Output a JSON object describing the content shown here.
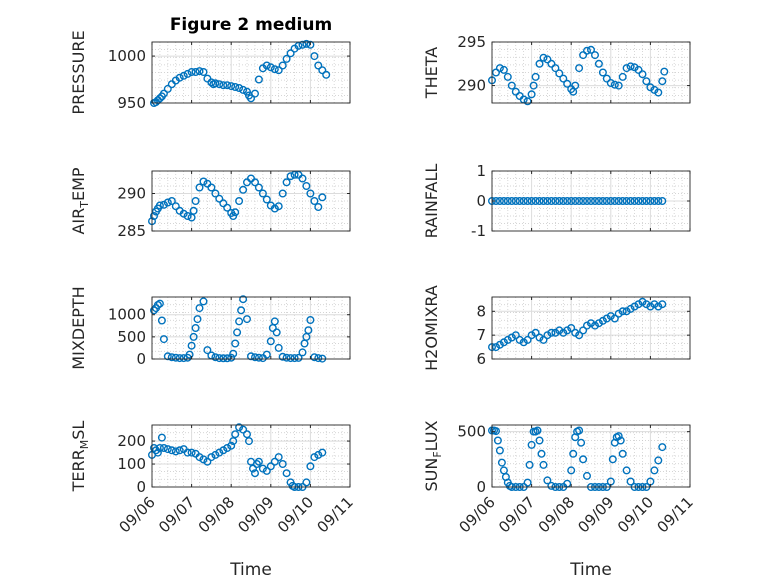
{
  "figure": {
    "title": "Figure 2 medium",
    "xlabel": "Time"
  },
  "colors": {
    "marker": "#0072BD",
    "axis": "#262626",
    "grid": "#c8c8c8"
  },
  "chart_data": [
    {
      "type": "scatter",
      "id": "pressure",
      "ylabel": {
        "main": "PRESSURE",
        "sub": "",
        "tail": ""
      },
      "ylim": [
        950,
        1015
      ],
      "yticks": [
        950,
        1000
      ],
      "xlim": [
        "09/06",
        "09/11"
      ],
      "grid": true,
      "series": [
        {
          "x": [
            0.05,
            0.1,
            0.15,
            0.2,
            0.25,
            0.3,
            0.4,
            0.5,
            0.6,
            0.7,
            0.8,
            0.9,
            1.0,
            1.1,
            1.2,
            1.3,
            1.4,
            1.5,
            1.55,
            1.6,
            1.7,
            1.8,
            1.9,
            2.0,
            2.1,
            2.2,
            2.3,
            2.4,
            2.45,
            2.5,
            2.6,
            2.7,
            2.8,
            2.9,
            3.0,
            3.1,
            3.2,
            3.3,
            3.4,
            3.5,
            3.6,
            3.7,
            3.8,
            3.9,
            4.0,
            4.1,
            4.2,
            4.3,
            4.4
          ],
          "y": [
            950,
            951,
            953,
            955,
            957,
            960,
            965,
            970,
            974,
            977,
            979,
            981,
            983,
            983,
            984,
            983,
            976,
            972,
            970,
            971,
            970,
            969,
            969,
            968,
            967,
            966,
            964,
            962,
            958,
            955,
            960,
            975,
            987,
            990,
            988,
            986,
            985,
            990,
            997,
            1003,
            1008,
            1011,
            1012,
            1013,
            1012,
            1000,
            990,
            985,
            980
          ]
        }
      ]
    },
    {
      "type": "scatter",
      "id": "theta",
      "ylabel": {
        "main": "THETA",
        "sub": "",
        "tail": ""
      },
      "ylim": [
        288,
        295
      ],
      "yticks": [
        290,
        295
      ],
      "xlim": [
        "09/06",
        "09/11"
      ],
      "grid": true,
      "series": [
        {
          "x": [
            0.0,
            0.1,
            0.2,
            0.3,
            0.4,
            0.5,
            0.6,
            0.7,
            0.8,
            0.9,
            1.0,
            1.05,
            1.1,
            1.2,
            1.3,
            1.4,
            1.5,
            1.6,
            1.7,
            1.8,
            1.9,
            2.0,
            2.05,
            2.1,
            2.2,
            2.3,
            2.4,
            2.5,
            2.6,
            2.7,
            2.8,
            2.9,
            3.0,
            3.1,
            3.2,
            3.3,
            3.4,
            3.5,
            3.6,
            3.7,
            3.8,
            3.9,
            4.0,
            4.1,
            4.2,
            4.3,
            4.35
          ],
          "y": [
            290.6,
            291.5,
            292,
            291.8,
            291,
            290,
            289.3,
            288.8,
            288.4,
            288.2,
            289,
            290,
            291,
            292.5,
            293.2,
            293,
            292.5,
            292,
            291.4,
            290.8,
            290.2,
            289.6,
            289.3,
            290,
            292,
            293.5,
            294,
            294.1,
            293.5,
            292.5,
            291.5,
            290.8,
            290.3,
            290.1,
            290,
            291,
            292,
            292.2,
            292.1,
            291.8,
            291.3,
            290.5,
            289.8,
            289.5,
            289.2,
            290.5,
            291.6
          ]
        }
      ]
    },
    {
      "type": "scatter",
      "id": "air_temp",
      "ylabel": {
        "main": "AIR",
        "sub": "T",
        "tail": "EMP"
      },
      "ylim": [
        285,
        293
      ],
      "yticks": [
        285,
        290
      ],
      "xlim": [
        "09/06",
        "09/11"
      ],
      "grid": true,
      "series": [
        {
          "x": [
            0.0,
            0.05,
            0.1,
            0.15,
            0.2,
            0.3,
            0.4,
            0.5,
            0.6,
            0.7,
            0.8,
            0.9,
            1.0,
            1.05,
            1.1,
            1.2,
            1.3,
            1.4,
            1.5,
            1.6,
            1.7,
            1.8,
            1.9,
            2.0,
            2.05,
            2.1,
            2.2,
            2.3,
            2.4,
            2.5,
            2.6,
            2.7,
            2.8,
            2.9,
            3.0,
            3.1,
            3.2,
            3.3,
            3.4,
            3.5,
            3.6,
            3.7,
            3.8,
            3.9,
            4.0,
            4.1,
            4.2,
            4.3
          ],
          "y": [
            286.3,
            287,
            287.6,
            288,
            288.4,
            288.5,
            288.8,
            289,
            288.3,
            287.7,
            287.3,
            287,
            286.8,
            287.7,
            289,
            290.8,
            291.6,
            291.3,
            290.8,
            290,
            289.3,
            288.7,
            288.1,
            287.4,
            287,
            287.5,
            289,
            290.5,
            291.5,
            292,
            291.5,
            290.8,
            290,
            289.2,
            288.4,
            288,
            288.3,
            290,
            291.5,
            292.3,
            292.5,
            292.5,
            292,
            291,
            290,
            289,
            288.2,
            289.5
          ]
        }
      ]
    },
    {
      "type": "scatter",
      "id": "rainfall",
      "ylabel": {
        "main": "RAINFALL",
        "sub": "",
        "tail": ""
      },
      "ylim": [
        -1,
        1
      ],
      "yticks": [
        -1,
        0,
        1
      ],
      "xlim": [
        "09/06",
        "09/11"
      ],
      "grid": true,
      "series": [
        {
          "x": [
            0.0,
            0.1,
            0.2,
            0.3,
            0.4,
            0.5,
            0.6,
            0.7,
            0.8,
            0.9,
            1.0,
            1.1,
            1.2,
            1.3,
            1.4,
            1.5,
            1.6,
            1.7,
            1.8,
            1.9,
            2.0,
            2.1,
            2.2,
            2.3,
            2.4,
            2.5,
            2.6,
            2.7,
            2.8,
            2.9,
            3.0,
            3.1,
            3.2,
            3.3,
            3.4,
            3.5,
            3.6,
            3.7,
            3.8,
            3.9,
            4.0,
            4.1,
            4.2,
            4.3
          ],
          "y": [
            0,
            0,
            0,
            0,
            0,
            0,
            0,
            0,
            0,
            0,
            0,
            0,
            0,
            0,
            0,
            0,
            0,
            0,
            0,
            0,
            0,
            0,
            0,
            0,
            0,
            0,
            0,
            0,
            0,
            0,
            0,
            0,
            0,
            0,
            0,
            0,
            0,
            0,
            0,
            0,
            0,
            0,
            0,
            0
          ]
        }
      ]
    },
    {
      "type": "scatter",
      "id": "mixdepth",
      "ylabel": {
        "main": "MIXDEPTH",
        "sub": "",
        "tail": ""
      },
      "ylim": [
        0,
        1400
      ],
      "yticks": [
        0,
        500,
        1000
      ],
      "xlim": [
        "09/06",
        "09/11"
      ],
      "grid": true,
      "series": [
        {
          "x": [
            0.05,
            0.1,
            0.15,
            0.2,
            0.25,
            0.3,
            0.4,
            0.5,
            0.6,
            0.7,
            0.8,
            0.9,
            0.95,
            1.0,
            1.05,
            1.1,
            1.15,
            1.2,
            1.3,
            1.4,
            1.5,
            1.6,
            1.7,
            1.8,
            1.9,
            2.0,
            2.05,
            2.1,
            2.15,
            2.2,
            2.25,
            2.3,
            2.4,
            2.5,
            2.6,
            2.7,
            2.8,
            2.9,
            3.0,
            3.05,
            3.1,
            3.15,
            3.2,
            3.3,
            3.4,
            3.5,
            3.6,
            3.7,
            3.8,
            3.85,
            3.9,
            3.95,
            4.0,
            4.1,
            4.2,
            4.3
          ],
          "y": [
            1100,
            1150,
            1220,
            1250,
            870,
            450,
            60,
            40,
            30,
            20,
            20,
            30,
            100,
            300,
            500,
            700,
            900,
            1150,
            1300,
            200,
            80,
            40,
            20,
            15,
            15,
            30,
            120,
            350,
            600,
            850,
            1100,
            1350,
            900,
            60,
            40,
            30,
            20,
            100,
            400,
            700,
            850,
            600,
            250,
            50,
            30,
            20,
            20,
            25,
            150,
            350,
            500,
            650,
            880,
            40,
            20,
            10
          ]
        }
      ]
    },
    {
      "type": "scatter",
      "id": "h2omixra",
      "ylabel": {
        "main": "H2OMIXRA",
        "sub": "",
        "tail": ""
      },
      "ylim": [
        6,
        8.6
      ],
      "yticks": [
        6,
        7,
        8
      ],
      "xlim": [
        "09/06",
        "09/11"
      ],
      "grid": true,
      "series": [
        {
          "x": [
            0.0,
            0.1,
            0.2,
            0.3,
            0.4,
            0.5,
            0.6,
            0.7,
            0.8,
            0.9,
            1.0,
            1.1,
            1.2,
            1.3,
            1.4,
            1.5,
            1.6,
            1.7,
            1.8,
            1.9,
            2.0,
            2.1,
            2.2,
            2.3,
            2.4,
            2.5,
            2.6,
            2.7,
            2.8,
            2.9,
            3.0,
            3.1,
            3.2,
            3.3,
            3.4,
            3.5,
            3.6,
            3.7,
            3.8,
            3.9,
            4.0,
            4.1,
            4.2,
            4.3
          ],
          "y": [
            6.5,
            6.5,
            6.6,
            6.7,
            6.8,
            6.9,
            7.0,
            6.8,
            6.7,
            6.8,
            7.0,
            7.1,
            6.9,
            6.8,
            7.0,
            7.1,
            7.1,
            7.2,
            7.1,
            7.2,
            7.3,
            7.1,
            7.0,
            7.2,
            7.4,
            7.5,
            7.4,
            7.5,
            7.6,
            7.7,
            7.8,
            7.7,
            7.9,
            8.0,
            8.0,
            8.1,
            8.2,
            8.3,
            8.4,
            8.3,
            8.2,
            8.3,
            8.2,
            8.3
          ]
        }
      ]
    },
    {
      "type": "scatter",
      "id": "terr_msl",
      "ylabel": {
        "main": "TERR",
        "sub": "M",
        "tail": "SL"
      },
      "ylim": [
        0,
        270
      ],
      "yticks": [
        0,
        100,
        200
      ],
      "xlim": [
        "09/06",
        "09/11"
      ],
      "grid": true,
      "series": [
        {
          "x": [
            0.0,
            0.05,
            0.1,
            0.15,
            0.2,
            0.25,
            0.3,
            0.4,
            0.5,
            0.6,
            0.7,
            0.8,
            0.9,
            1.0,
            1.1,
            1.2,
            1.3,
            1.4,
            1.5,
            1.6,
            1.7,
            1.8,
            1.9,
            2.0,
            2.05,
            2.1,
            2.2,
            2.3,
            2.4,
            2.45,
            2.5,
            2.55,
            2.6,
            2.65,
            2.7,
            2.8,
            2.9,
            3.0,
            3.1,
            3.2,
            3.3,
            3.4,
            3.5,
            3.55,
            3.6,
            3.7,
            3.8,
            3.9,
            4.0,
            4.1,
            4.2,
            4.3
          ],
          "y": [
            140,
            170,
            160,
            150,
            170,
            215,
            170,
            165,
            160,
            155,
            160,
            165,
            150,
            150,
            145,
            130,
            120,
            110,
            130,
            140,
            150,
            160,
            170,
            180,
            200,
            230,
            260,
            250,
            230,
            200,
            110,
            80,
            60,
            100,
            110,
            80,
            70,
            90,
            110,
            130,
            100,
            60,
            20,
            5,
            0,
            0,
            0,
            20,
            90,
            130,
            140,
            150
          ]
        }
      ]
    },
    {
      "type": "scatter",
      "id": "sun_flux",
      "ylabel": {
        "main": "SUN",
        "sub": "F",
        "tail": "LUX"
      },
      "ylim": [
        0,
        560
      ],
      "yticks": [
        0,
        500
      ],
      "xlim": [
        "09/06",
        "09/11"
      ],
      "grid": true,
      "series": [
        {
          "x": [
            0.0,
            0.05,
            0.1,
            0.15,
            0.2,
            0.25,
            0.3,
            0.35,
            0.4,
            0.45,
            0.5,
            0.6,
            0.7,
            0.8,
            0.9,
            0.95,
            1.0,
            1.05,
            1.1,
            1.15,
            1.2,
            1.25,
            1.3,
            1.4,
            1.5,
            1.6,
            1.7,
            1.8,
            1.9,
            2.0,
            2.05,
            2.1,
            2.15,
            2.2,
            2.25,
            2.3,
            2.4,
            2.5,
            2.6,
            2.7,
            2.8,
            2.9,
            3.0,
            3.05,
            3.1,
            3.15,
            3.2,
            3.25,
            3.3,
            3.4,
            3.5,
            3.6,
            3.7,
            3.8,
            3.9,
            4.0,
            4.1,
            4.2,
            4.3
          ],
          "y": [
            510,
            510,
            505,
            420,
            330,
            220,
            150,
            90,
            40,
            10,
            0,
            0,
            0,
            0,
            40,
            200,
            380,
            500,
            500,
            510,
            420,
            300,
            200,
            60,
            10,
            0,
            0,
            0,
            30,
            150,
            300,
            450,
            500,
            510,
            400,
            250,
            100,
            0,
            0,
            0,
            0,
            0,
            50,
            250,
            400,
            450,
            460,
            420,
            300,
            150,
            50,
            0,
            0,
            0,
            0,
            50,
            150,
            240,
            360
          ]
        }
      ]
    }
  ]
}
